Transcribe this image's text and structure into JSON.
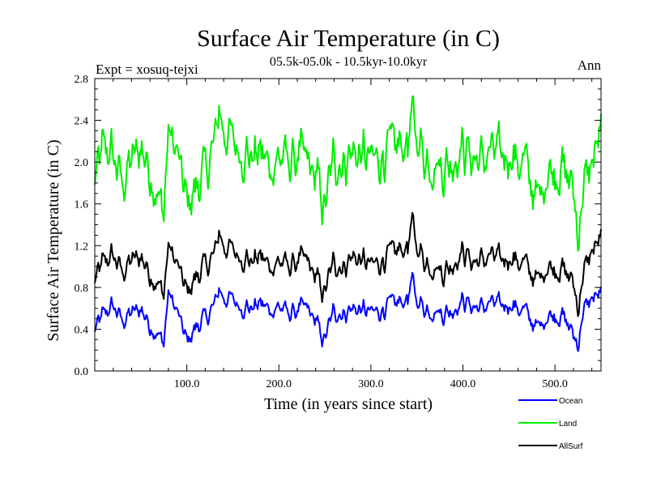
{
  "chart_data": {
    "type": "line",
    "title": "Surface Air Temperature (in C)",
    "subtitle": "05.5k-05.0k - 10.5kyr-10.0kyr",
    "expt_label": "Expt = xosuq-tejxi",
    "period_label": "Ann",
    "xlabel": "Time (in years since start)",
    "ylabel": "Surface Air Temperature (in C)",
    "xlim": [
      0,
      550
    ],
    "ylim": [
      0.0,
      2.8
    ],
    "x_ticks": [
      100,
      200,
      300,
      400,
      500
    ],
    "x_tick_labels": [
      "100.0",
      "200.0",
      "300.0",
      "400.0",
      "500.0"
    ],
    "y_ticks": [
      0.0,
      0.4,
      0.8,
      1.2,
      1.6,
      2.0,
      2.4,
      2.8
    ],
    "y_tick_labels": [
      "0.0",
      "0.4",
      "0.8",
      "1.2",
      "1.6",
      "2.0",
      "2.4",
      "2.8"
    ],
    "legend_position": "bottom-right (below plot)",
    "grid": false,
    "series": [
      {
        "name": "Ocean",
        "color": "#0000ff",
        "points": [
          [
            0,
            0.38
          ],
          [
            10,
            0.55
          ],
          [
            20,
            0.62
          ],
          [
            30,
            0.48
          ],
          [
            40,
            0.55
          ],
          [
            50,
            0.6
          ],
          [
            60,
            0.45
          ],
          [
            70,
            0.32
          ],
          [
            75,
            0.28
          ],
          [
            80,
            0.75
          ],
          [
            90,
            0.55
          ],
          [
            100,
            0.28
          ],
          [
            110,
            0.42
          ],
          [
            120,
            0.5
          ],
          [
            130,
            0.62
          ],
          [
            135,
            0.8
          ],
          [
            140,
            0.7
          ],
          [
            150,
            0.68
          ],
          [
            160,
            0.62
          ],
          [
            170,
            0.6
          ],
          [
            180,
            0.65
          ],
          [
            190,
            0.58
          ],
          [
            200,
            0.62
          ],
          [
            210,
            0.55
          ],
          [
            220,
            0.58
          ],
          [
            230,
            0.6
          ],
          [
            240,
            0.48
          ],
          [
            245,
            0.35
          ],
          [
            250,
            0.3
          ],
          [
            260,
            0.58
          ],
          [
            270,
            0.55
          ],
          [
            280,
            0.6
          ],
          [
            290,
            0.58
          ],
          [
            300,
            0.55
          ],
          [
            310,
            0.58
          ],
          [
            320,
            0.62
          ],
          [
            330,
            0.65
          ],
          [
            340,
            0.7
          ],
          [
            345,
            0.85
          ],
          [
            350,
            0.68
          ],
          [
            360,
            0.6
          ],
          [
            370,
            0.58
          ],
          [
            380,
            0.55
          ],
          [
            390,
            0.6
          ],
          [
            400,
            0.68
          ],
          [
            410,
            0.62
          ],
          [
            420,
            0.6
          ],
          [
            430,
            0.65
          ],
          [
            440,
            0.62
          ],
          [
            450,
            0.65
          ],
          [
            460,
            0.6
          ],
          [
            470,
            0.55
          ],
          [
            480,
            0.4
          ],
          [
            490,
            0.52
          ],
          [
            500,
            0.55
          ],
          [
            510,
            0.5
          ],
          [
            520,
            0.35
          ],
          [
            525,
            0.25
          ],
          [
            530,
            0.55
          ],
          [
            540,
            0.7
          ],
          [
            550,
            0.72
          ]
        ]
      },
      {
        "name": "Land",
        "color": "#00ee00",
        "points": [
          [
            0,
            1.8
          ],
          [
            10,
            2.15
          ],
          [
            20,
            2.05
          ],
          [
            30,
            1.8
          ],
          [
            40,
            2.0
          ],
          [
            50,
            2.15
          ],
          [
            60,
            1.95
          ],
          [
            70,
            1.6
          ],
          [
            75,
            1.55
          ],
          [
            80,
            2.3
          ],
          [
            90,
            2.05
          ],
          [
            100,
            1.6
          ],
          [
            110,
            1.75
          ],
          [
            120,
            1.9
          ],
          [
            130,
            2.15
          ],
          [
            135,
            2.55
          ],
          [
            140,
            2.3
          ],
          [
            150,
            2.2
          ],
          [
            160,
            2.1
          ],
          [
            170,
            2.05
          ],
          [
            180,
            2.1
          ],
          [
            190,
            1.95
          ],
          [
            200,
            2.05
          ],
          [
            210,
            2.0
          ],
          [
            220,
            2.05
          ],
          [
            230,
            2.0
          ],
          [
            240,
            1.85
          ],
          [
            245,
            1.7
          ],
          [
            250,
            1.55
          ],
          [
            260,
            2.05
          ],
          [
            270,
            2.0
          ],
          [
            280,
            2.1
          ],
          [
            290,
            2.05
          ],
          [
            300,
            2.0
          ],
          [
            310,
            2.05
          ],
          [
            320,
            2.1
          ],
          [
            330,
            2.15
          ],
          [
            340,
            2.2
          ],
          [
            345,
            2.4
          ],
          [
            350,
            2.25
          ],
          [
            360,
            2.05
          ],
          [
            370,
            2.0
          ],
          [
            380,
            1.95
          ],
          [
            390,
            2.05
          ],
          [
            400,
            2.15
          ],
          [
            410,
            2.05
          ],
          [
            420,
            2.0
          ],
          [
            430,
            2.1
          ],
          [
            440,
            2.05
          ],
          [
            450,
            2.1
          ],
          [
            460,
            2.0
          ],
          [
            470,
            1.95
          ],
          [
            480,
            1.6
          ],
          [
            490,
            1.9
          ],
          [
            500,
            1.95
          ],
          [
            510,
            1.9
          ],
          [
            520,
            1.75
          ],
          [
            525,
            1.3
          ],
          [
            530,
            1.7
          ],
          [
            540,
            2.0
          ],
          [
            550,
            2.25
          ]
        ]
      },
      {
        "name": "AllSurf",
        "color": "#000000",
        "points": [
          [
            0,
            0.85
          ],
          [
            10,
            1.05
          ],
          [
            20,
            1.1
          ],
          [
            30,
            0.95
          ],
          [
            40,
            1.05
          ],
          [
            50,
            1.1
          ],
          [
            60,
            0.95
          ],
          [
            70,
            0.8
          ],
          [
            75,
            0.75
          ],
          [
            80,
            1.2
          ],
          [
            90,
            1.0
          ],
          [
            100,
            0.75
          ],
          [
            110,
            0.9
          ],
          [
            120,
            1.0
          ],
          [
            130,
            1.1
          ],
          [
            135,
            1.35
          ],
          [
            140,
            1.2
          ],
          [
            150,
            1.15
          ],
          [
            160,
            1.1
          ],
          [
            170,
            1.05
          ],
          [
            180,
            1.1
          ],
          [
            190,
            1.0
          ],
          [
            200,
            1.05
          ],
          [
            210,
            1.0
          ],
          [
            220,
            1.05
          ],
          [
            230,
            1.05
          ],
          [
            240,
            0.9
          ],
          [
            245,
            0.8
          ],
          [
            250,
            0.75
          ],
          [
            260,
            1.05
          ],
          [
            270,
            1.0
          ],
          [
            280,
            1.1
          ],
          [
            290,
            1.05
          ],
          [
            300,
            1.0
          ],
          [
            310,
            1.05
          ],
          [
            320,
            1.1
          ],
          [
            330,
            1.15
          ],
          [
            340,
            1.2
          ],
          [
            345,
            1.4
          ],
          [
            350,
            1.2
          ],
          [
            360,
            1.05
          ],
          [
            370,
            1.0
          ],
          [
            380,
            0.95
          ],
          [
            390,
            1.05
          ],
          [
            400,
            1.15
          ],
          [
            410,
            1.05
          ],
          [
            420,
            1.05
          ],
          [
            430,
            1.1
          ],
          [
            440,
            1.05
          ],
          [
            450,
            1.1
          ],
          [
            460,
            1.05
          ],
          [
            470,
            1.0
          ],
          [
            480,
            0.85
          ],
          [
            490,
            1.0
          ],
          [
            500,
            1.0
          ],
          [
            510,
            0.95
          ],
          [
            520,
            0.85
          ],
          [
            525,
            0.6
          ],
          [
            530,
            0.9
          ],
          [
            540,
            1.15
          ],
          [
            550,
            1.25
          ]
        ]
      }
    ]
  }
}
